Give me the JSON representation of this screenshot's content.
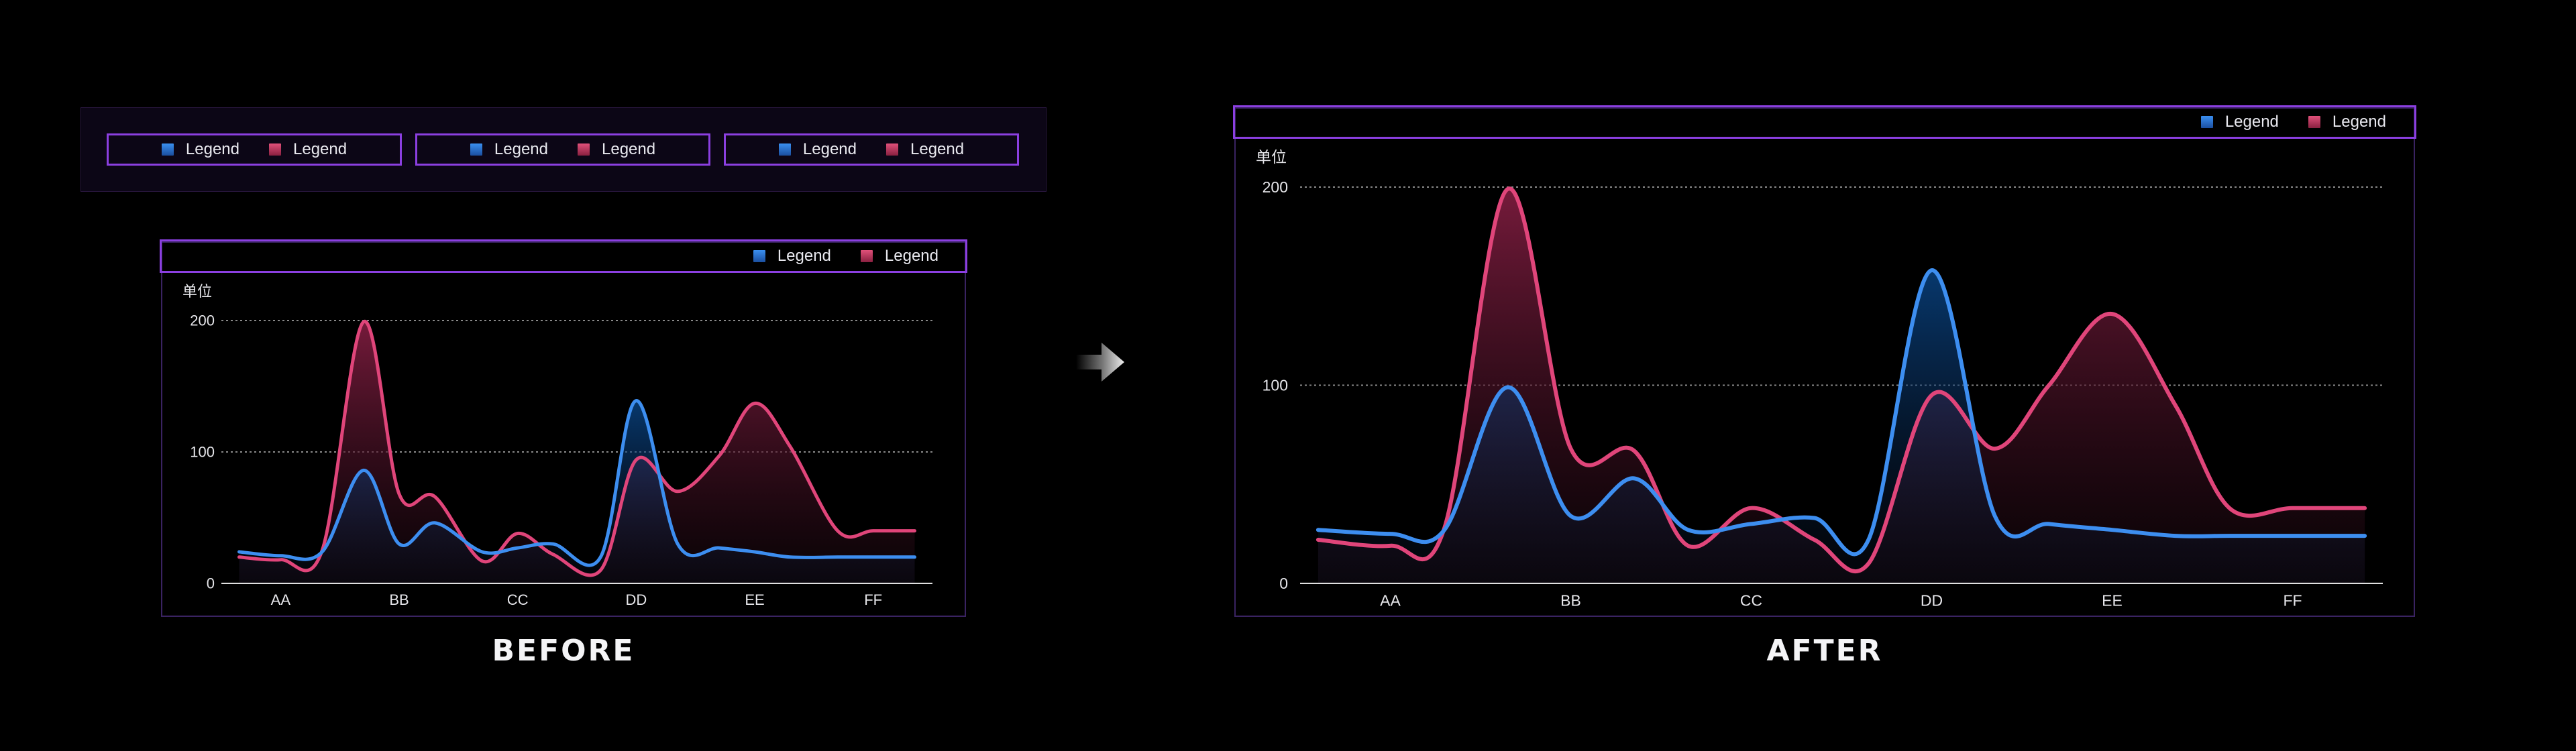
{
  "colors": {
    "blue": "#3d8ef0",
    "red": "#e0457a",
    "frame": "#8b3fe0"
  },
  "legend_label": "Legend",
  "sections": {
    "before": "BEFORE",
    "after": "AFTER"
  },
  "chart_data": [
    {
      "type": "area",
      "title": "",
      "ylabel": "单位",
      "ylim": [
        0,
        200
      ],
      "yticks": [
        0,
        100,
        200
      ],
      "categories": [
        "AA",
        "BB",
        "CC",
        "DD",
        "EE",
        "FF"
      ],
      "grid": true,
      "legend": "top-right",
      "series": [
        {
          "color": "blue",
          "x": [
            -0.35,
            0,
            0.35,
            0.7,
            1.0,
            1.3,
            1.7,
            2.0,
            2.3,
            2.7,
            3.0,
            3.35,
            3.7,
            4.0,
            4.3,
            4.7,
            5.0,
            5.35
          ],
          "y": [
            24,
            21,
            24,
            86,
            30,
            46,
            24,
            27,
            30,
            20,
            139,
            30,
            27,
            24,
            20,
            20,
            20,
            20
          ]
        },
        {
          "color": "red",
          "x": [
            -0.35,
            0,
            0.35,
            0.7,
            1.0,
            1.3,
            1.7,
            2.0,
            2.3,
            2.7,
            3.0,
            3.35,
            3.7,
            4.0,
            4.3,
            4.7,
            5.0,
            5.35
          ],
          "y": [
            20,
            18,
            25,
            199,
            68,
            66,
            17,
            38,
            22,
            10,
            94,
            70,
            97,
            137,
            104,
            40,
            40,
            40
          ]
        }
      ]
    },
    {
      "type": "area",
      "title": "",
      "ylabel": "单位",
      "ylim": [
        0,
        200
      ],
      "yticks": [
        0,
        100,
        200
      ],
      "categories": [
        "AA",
        "BB",
        "CC",
        "DD",
        "EE",
        "FF"
      ],
      "grid": true,
      "legend": "top-right",
      "series": [
        {
          "color": "blue",
          "x": [
            -0.4,
            0,
            0.3,
            0.65,
            1.0,
            1.35,
            1.65,
            2.0,
            2.35,
            2.65,
            3.0,
            3.35,
            3.65,
            4.0,
            4.35,
            4.65,
            5.0,
            5.4
          ],
          "y": [
            27,
            25,
            27,
            99,
            34,
            53,
            27,
            30,
            33,
            22,
            158,
            34,
            30,
            27,
            24,
            24,
            24,
            24
          ]
        },
        {
          "color": "red",
          "x": [
            -0.4,
            0,
            0.3,
            0.65,
            1.0,
            1.35,
            1.65,
            2.0,
            2.35,
            2.65,
            3.0,
            3.35,
            3.65,
            4.0,
            4.35,
            4.65,
            5.0,
            5.4
          ],
          "y": [
            22,
            19,
            28,
            199,
            68,
            67,
            19,
            38,
            22,
            10,
            95,
            68,
            100,
            136,
            90,
            38,
            38,
            38
          ]
        }
      ]
    }
  ]
}
